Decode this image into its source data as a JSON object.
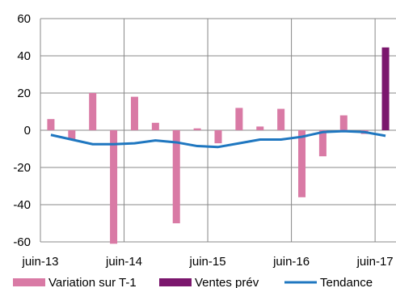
{
  "chart_data": {
    "type": "bar",
    "ylim": [
      -60,
      60
    ],
    "y_ticks": [
      -60,
      -40,
      -20,
      0,
      20,
      40,
      60
    ],
    "grid": true,
    "legend_placement": "bottom",
    "x_tick_labels": [
      "juin-13",
      "juin-14",
      "juin-15",
      "juin-16",
      "juin-17"
    ],
    "periods": 17,
    "series": [
      {
        "name": "Variation sur T-1",
        "type": "bar",
        "color": "#d97aa5",
        "values": [
          6,
          -5,
          20,
          -61,
          18,
          4,
          -50,
          1,
          -7,
          12,
          2,
          11.5,
          -36,
          -14,
          8,
          -2,
          15.5
        ]
      },
      {
        "name": "Ventes prév",
        "type": "bar",
        "color": "#7b176d",
        "values": [
          null,
          null,
          null,
          null,
          null,
          null,
          null,
          null,
          null,
          null,
          null,
          null,
          null,
          null,
          null,
          null,
          44.5
        ]
      },
      {
        "name": "Tendance",
        "type": "line",
        "color": "#1f77c0",
        "values": [
          -2.5,
          -5,
          -7.5,
          -7.5,
          -7,
          -5.5,
          -6.5,
          -8.5,
          -9,
          -7,
          -5,
          -5,
          -3.5,
          -1,
          -0.5,
          -1,
          -3
        ]
      }
    ]
  }
}
